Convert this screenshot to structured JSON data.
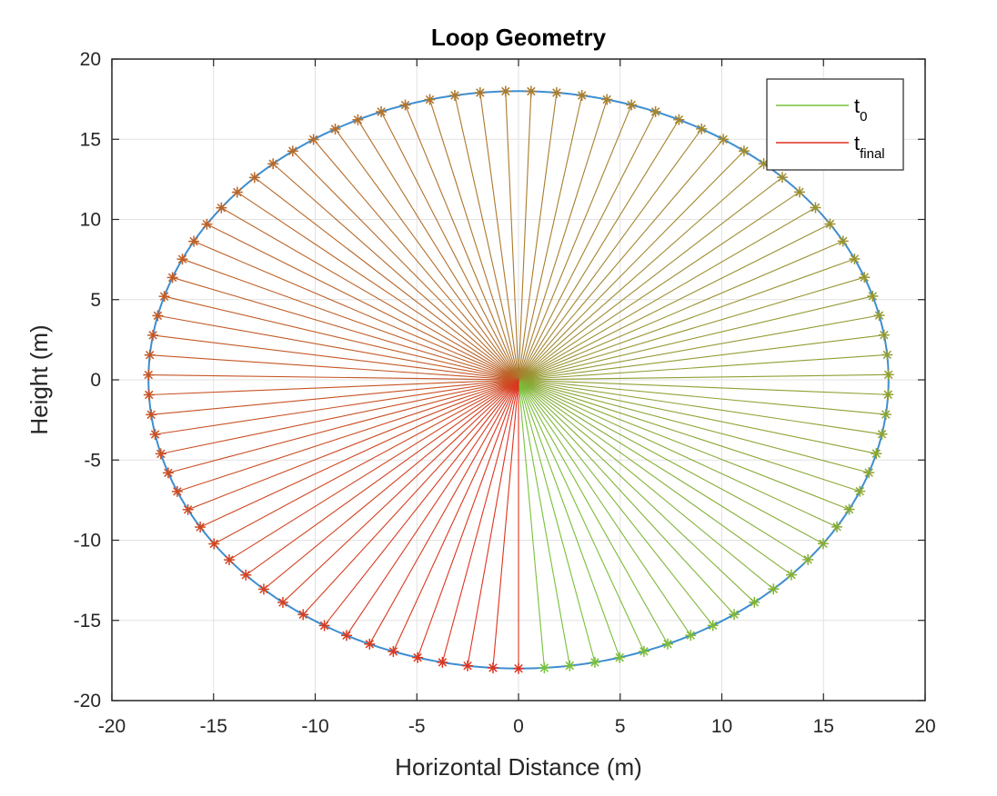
{
  "chart_data": {
    "type": "line",
    "title": "Loop Geometry",
    "xlabel": "Horizontal Distance (m)",
    "ylabel": "Height (m)",
    "xlim": [
      -20,
      20
    ],
    "ylim": [
      -20,
      20
    ],
    "xticks": [
      "-20",
      "-15",
      "-10",
      "-5",
      "0",
      "5",
      "10",
      "15",
      "20"
    ],
    "yticks": [
      "20",
      "15",
      "10",
      "5",
      "0",
      "-5",
      "-10",
      "-15",
      "-20"
    ],
    "grid": true,
    "legend": {
      "placement": "top-right",
      "entries": [
        {
          "base": "t",
          "sub": "0",
          "color": "#77c23a"
        },
        {
          "base": "t",
          "sub": "final",
          "color": "#e0301e"
        }
      ]
    },
    "loop": {
      "shape": "ellipse",
      "center": [
        0,
        0
      ],
      "radius_x": 18.2,
      "radius_y": 18.0,
      "color": "#3e8ed0"
    },
    "spokes": {
      "count": 91,
      "start_angle_deg": -86,
      "sweep_deg": 356,
      "color_start": "#77c23a",
      "color_end": "#e0301e",
      "marker": "*"
    },
    "colors": {
      "grid": "#e2e2e2",
      "axis": "#262626"
    }
  }
}
